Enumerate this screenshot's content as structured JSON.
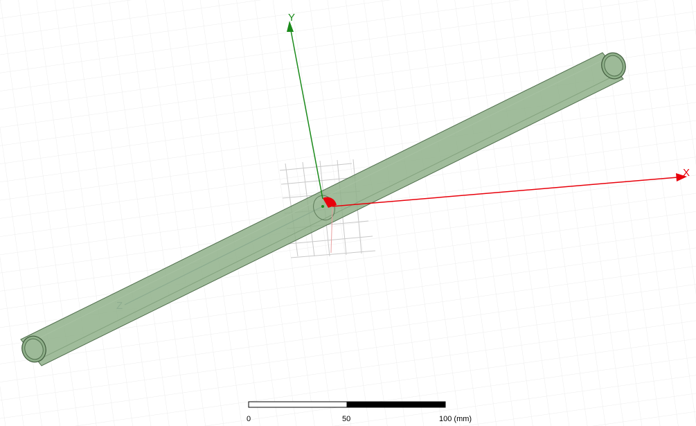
{
  "viewport": {
    "background": "#ffffff",
    "grid_color": "#e6e6e6",
    "local_grid_color": "#c8c8c8"
  },
  "axes": {
    "x": {
      "label": "X",
      "color": "#e8000b"
    },
    "y": {
      "label": "Y",
      "color": "#1a8a1a"
    },
    "z": {
      "label": "Z",
      "color": "#6f8ba8"
    }
  },
  "model": {
    "body_color": "#8fb08a",
    "edge_color": "#4f6e4c"
  },
  "scale_bar": {
    "labels": [
      "0",
      "50",
      "100 (mm)"
    ]
  }
}
